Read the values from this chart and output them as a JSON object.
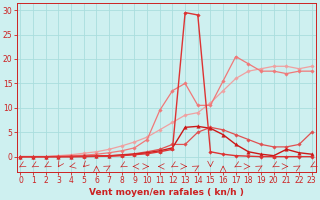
{
  "x": [
    0,
    1,
    2,
    3,
    4,
    5,
    6,
    7,
    8,
    9,
    10,
    11,
    12,
    13,
    14,
    15,
    16,
    17,
    18,
    19,
    20,
    21,
    22,
    23
  ],
  "series": [
    {
      "color": "#f0a0a0",
      "lw": 0.9,
      "marker": "D",
      "ms": 1.8,
      "values": [
        0,
        0,
        0,
        0.2,
        0.4,
        0.7,
        1.0,
        1.5,
        2.2,
        3.0,
        4.0,
        5.5,
        7.0,
        8.5,
        9.0,
        11.0,
        13.5,
        16.0,
        17.5,
        18.0,
        18.5,
        18.5,
        18.0,
        18.5
      ]
    },
    {
      "color": "#f07878",
      "lw": 0.9,
      "marker": "D",
      "ms": 1.8,
      "values": [
        0,
        0,
        0,
        0.1,
        0.2,
        0.3,
        0.5,
        0.8,
        1.2,
        1.8,
        3.5,
        9.5,
        13.5,
        15.0,
        10.5,
        10.5,
        15.5,
        20.5,
        19.0,
        17.5,
        17.5,
        17.0,
        17.5,
        17.5
      ]
    },
    {
      "color": "#e05050",
      "lw": 0.9,
      "marker": "D",
      "ms": 1.8,
      "values": [
        0,
        0,
        0,
        0,
        0.05,
        0.1,
        0.15,
        0.2,
        0.4,
        0.6,
        1.0,
        1.5,
        2.5,
        2.5,
        5.0,
        6.0,
        5.5,
        4.5,
        3.5,
        2.5,
        2.0,
        2.0,
        2.5,
        5.0
      ]
    },
    {
      "color": "#cc1818",
      "lw": 1.0,
      "marker": "^",
      "ms": 2.5,
      "values": [
        0,
        0,
        0,
        0,
        0,
        0.05,
        0.1,
        0.15,
        0.3,
        0.5,
        0.8,
        1.2,
        1.8,
        6.0,
        6.2,
        5.8,
        4.5,
        2.5,
        1.0,
        0.5,
        0.2,
        1.5,
        0.8,
        0.5
      ]
    },
    {
      "color": "#dd3333",
      "lw": 1.0,
      "marker": "D",
      "ms": 1.8,
      "values": [
        0,
        0,
        0,
        0,
        0,
        0,
        0.05,
        0.1,
        0.2,
        0.4,
        0.6,
        1.0,
        1.5,
        29.5,
        29.0,
        1.0,
        0.5,
        0.2,
        0.1,
        0,
        0,
        0,
        0,
        0
      ]
    }
  ],
  "xlabel": "Vent moyen/en rafales ( kn/h )",
  "xlim": [
    -0.3,
    23.3
  ],
  "ylim": [
    -3.2,
    31.5
  ],
  "yticks": [
    0,
    5,
    10,
    15,
    20,
    25,
    30
  ],
  "xticks": [
    0,
    1,
    2,
    3,
    4,
    5,
    6,
    7,
    8,
    9,
    10,
    11,
    12,
    13,
    14,
    15,
    16,
    17,
    18,
    19,
    20,
    21,
    22,
    23
  ],
  "bg_color": "#cef0f0",
  "grid_color": "#aadddd",
  "axis_color": "#cc2222",
  "xlabel_fontsize": 6.5,
  "tick_fontsize": 5.5,
  "arrow_angles": [
    225,
    225,
    225,
    200,
    250,
    210,
    0,
    45,
    225,
    270,
    90,
    270,
    225,
    90,
    45,
    180,
    0,
    225,
    90,
    45,
    225,
    90,
    45,
    225
  ]
}
